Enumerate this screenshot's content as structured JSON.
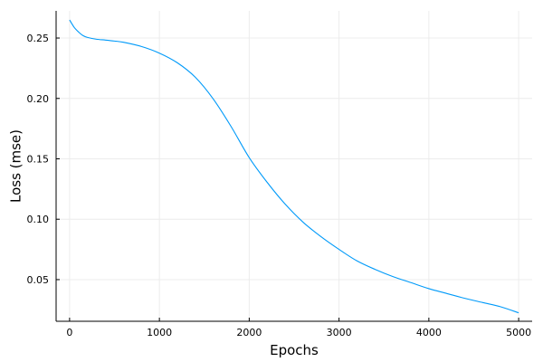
{
  "chart_data": {
    "type": "line",
    "title": "",
    "xlabel": "Epochs",
    "ylabel": "Loss (mse)",
    "xlim": [
      -150,
      5150
    ],
    "ylim": [
      0.0155,
      0.2725
    ],
    "xticks": [
      0,
      1000,
      2000,
      3000,
      4000,
      5000
    ],
    "xtick_labels": [
      "0",
      "1000",
      "2000",
      "3000",
      "4000",
      "5000"
    ],
    "yticks": [
      0.05,
      0.1,
      0.15,
      0.2,
      0.25
    ],
    "ytick_labels": [
      "0.05",
      "0.10",
      "0.15",
      "0.20",
      "0.25"
    ],
    "grid": true,
    "legend": "none",
    "series": [
      {
        "color": "#009af9",
        "x": [
          0,
          50,
          100,
          150,
          200,
          300,
          400,
          500,
          600,
          800,
          1000,
          1200,
          1400,
          1600,
          1800,
          2000,
          2200,
          2400,
          2600,
          2800,
          3000,
          3200,
          3400,
          3600,
          3800,
          4000,
          4200,
          4400,
          4600,
          4800,
          5000
        ],
        "y": [
          0.265,
          0.259,
          0.255,
          0.252,
          0.2505,
          0.249,
          0.2483,
          0.2475,
          0.2465,
          0.243,
          0.2375,
          0.2295,
          0.2175,
          0.1995,
          0.1765,
          0.151,
          0.1305,
          0.1125,
          0.0975,
          0.0855,
          0.075,
          0.0655,
          0.0585,
          0.0525,
          0.0475,
          0.0425,
          0.0385,
          0.0345,
          0.031,
          0.0275,
          0.0225
        ]
      }
    ]
  }
}
